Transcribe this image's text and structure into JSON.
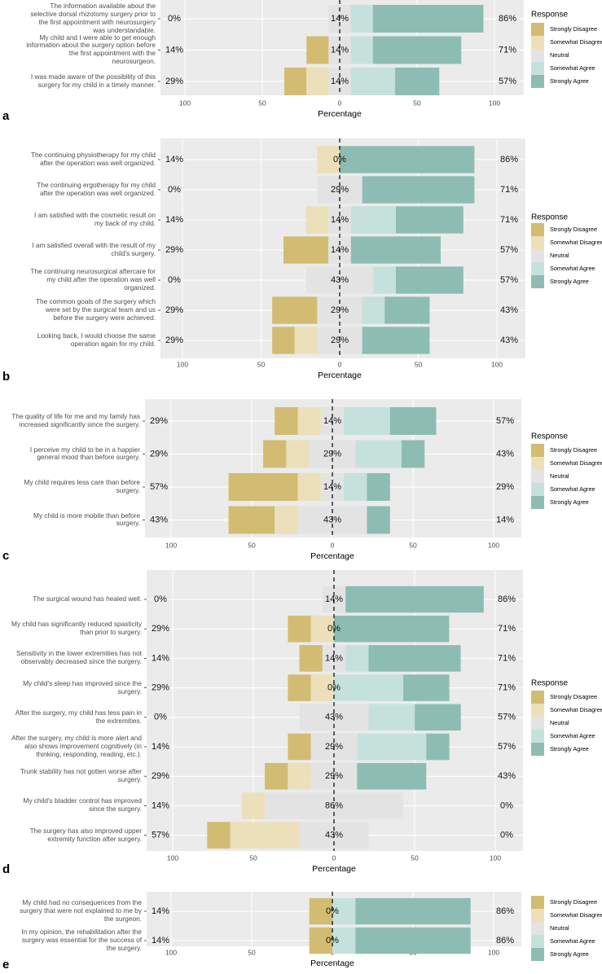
{
  "chart_data": [
    {
      "type": "bar",
      "orientation": "horizontal",
      "stacking": "diverging",
      "panel_label": "a",
      "x_label": "Percentage",
      "legend_title": "Response",
      "xlim": [
        -100,
        100
      ],
      "xticks": [
        {
          "value": -100,
          "label": "100"
        },
        {
          "value": -50,
          "label": "50"
        },
        0,
        50,
        100
      ],
      "grid": true,
      "categories": [
        "The information available about the selective dorsal rhizotomy surgery prior to the first appointment with neurosurgery was understandable.",
        "My child and I were able to get enough information about the surgery option before the first appointment with the neurosurgeon.",
        "I was made aware of the possibility of this surgery for my child in a timely manner."
      ],
      "series": [
        {
          "name": "Strongly Disagree",
          "color": "#d2bc72",
          "values": [
            0,
            14.3,
            14.3
          ]
        },
        {
          "name": "Somewhat Disagree",
          "color": "#ebe0b9",
          "values": [
            0,
            0,
            14.3
          ]
        },
        {
          "name": "Neutral",
          "color": "#e3e3e3",
          "values": [
            14.3,
            14.3,
            14.3
          ],
          "value_labels": [
            "14%",
            "14%",
            "14%"
          ]
        },
        {
          "name": "Somewhat Agree",
          "color": "#c5e1db",
          "values": [
            14.3,
            14.3,
            28.6
          ]
        },
        {
          "name": "Strongly Agree",
          "color": "#8dbdb2",
          "values": [
            71.4,
            57.1,
            28.6
          ]
        }
      ],
      "left_labels": [
        "0%",
        "14%",
        "29%"
      ],
      "right_labels": [
        "86%",
        "71%",
        "57%"
      ]
    },
    {
      "type": "bar",
      "orientation": "horizontal",
      "stacking": "diverging",
      "panel_label": "b",
      "x_label": "Percentage",
      "legend_title": "Response",
      "xlim": [
        -100,
        100
      ],
      "xticks": [
        {
          "value": -100,
          "label": "100"
        },
        {
          "value": -50,
          "label": "50"
        },
        0,
        50,
        100
      ],
      "grid": true,
      "categories": [
        "The continuing physiotherapy for my child after the operation was well organized.",
        "The continuing ergotherapy for my child after the operation was well organized.",
        "I am satisfied with the cosmetic result on my back of my child.",
        "I am satisfied overall with the result of my child's surgery.",
        "The continuing neurosurgical aftercare for my child after the operation was well organized.",
        "The common goals of the surgery which were set by the surgical team and us before the surgery were achieved.",
        "Looking back, I would choose the same operation again for my child."
      ],
      "series": [
        {
          "name": "Strongly Disagree",
          "color": "#d2bc72",
          "values": [
            0,
            0,
            0,
            28.6,
            0,
            28.6,
            14.3
          ]
        },
        {
          "name": "Somewhat Disagree",
          "color": "#ebe0b9",
          "values": [
            14.3,
            0,
            14.3,
            0,
            0,
            0,
            14.3
          ]
        },
        {
          "name": "Neutral",
          "color": "#e3e3e3",
          "values": [
            0,
            28.6,
            14.3,
            14.3,
            42.9,
            28.6,
            28.6
          ],
          "value_labels": [
            "0%",
            "29%",
            "14%",
            "14%",
            "43%",
            "29%",
            "29%"
          ]
        },
        {
          "name": "Somewhat Agree",
          "color": "#c5e1db",
          "values": [
            0,
            0,
            28.6,
            0,
            14.3,
            14.3,
            0
          ]
        },
        {
          "name": "Strongly Agree",
          "color": "#8dbdb2",
          "values": [
            85.7,
            71.4,
            42.9,
            57.1,
            42.9,
            28.6,
            42.9
          ]
        }
      ],
      "left_labels": [
        "14%",
        "0%",
        "14%",
        "29%",
        "0%",
        "29%",
        "29%"
      ],
      "right_labels": [
        "86%",
        "71%",
        "71%",
        "57%",
        "57%",
        "43%",
        "43%"
      ]
    },
    {
      "type": "bar",
      "orientation": "horizontal",
      "stacking": "diverging",
      "panel_label": "c",
      "x_label": "Percentage",
      "legend_title": "Response",
      "xlim": [
        -100,
        100
      ],
      "xticks": [
        {
          "value": -100,
          "label": "100"
        },
        {
          "value": -50,
          "label": "50"
        },
        0,
        50,
        100
      ],
      "grid": true,
      "categories": [
        "The quality of life for me and my family has increased significantly since the surgery.",
        "I perceive my child to be in a happier general mood than before surgery.",
        "My child requires less care than before surgery.",
        "My child is more mobile than before surgery."
      ],
      "series": [
        {
          "name": "Strongly Disagree",
          "color": "#d2bc72",
          "values": [
            14.3,
            14.3,
            42.9,
            28.6
          ]
        },
        {
          "name": "Somewhat Disagree",
          "color": "#ebe0b9",
          "values": [
            14.3,
            14.3,
            14.3,
            14.3
          ]
        },
        {
          "name": "Neutral",
          "color": "#e3e3e3",
          "values": [
            14.3,
            28.6,
            14.3,
            42.9
          ],
          "value_labels": [
            "14%",
            "29%",
            "14%",
            "43%"
          ]
        },
        {
          "name": "Somewhat Agree",
          "color": "#c5e1db",
          "values": [
            28.6,
            28.6,
            14.3,
            0
          ]
        },
        {
          "name": "Strongly Agree",
          "color": "#8dbdb2",
          "values": [
            28.6,
            14.3,
            14.3,
            14.3
          ]
        }
      ],
      "left_labels": [
        "29%",
        "29%",
        "57%",
        "43%"
      ],
      "right_labels": [
        "57%",
        "43%",
        "29%",
        "14%"
      ]
    },
    {
      "type": "bar",
      "orientation": "horizontal",
      "stacking": "diverging",
      "panel_label": "d",
      "x_label": "Percentage",
      "legend_title": "Response",
      "xlim": [
        -100,
        100
      ],
      "xticks": [
        {
          "value": -100,
          "label": "100"
        },
        {
          "value": -50,
          "label": "50"
        },
        0,
        50,
        100
      ],
      "grid": true,
      "categories": [
        "The surgical wound has healed well.",
        "My child has significantly reduced spasticity than prior to surgery.",
        "Sensitivity in the lower extremities has not observably decreased since the surgery.",
        "My child's sleep has improved since the surgery.",
        "After the surgery, my child has less pain in the extremities.",
        "After the surgery, my child is more alert and also shows improvement cognitively (in thinking, responding, reading, etc.).",
        "Trunk stability has not gotten worse after surgery.",
        "My child's bladder control has improved since the surgery.",
        "The surgery has also improved upper extremity function after surgery."
      ],
      "series": [
        {
          "name": "Strongly Disagree",
          "color": "#d2bc72",
          "values": [
            0,
            14.3,
            14.3,
            14.3,
            0,
            14.3,
            14.3,
            0,
            14.3
          ]
        },
        {
          "name": "Somewhat Disagree",
          "color": "#ebe0b9",
          "values": [
            0,
            14.3,
            0,
            14.3,
            0,
            0,
            14.3,
            14.3,
            42.9
          ]
        },
        {
          "name": "Neutral",
          "color": "#e3e3e3",
          "values": [
            14.3,
            0,
            14.3,
            0,
            42.9,
            28.6,
            28.6,
            85.7,
            42.9
          ],
          "value_labels": [
            "14%",
            "0%",
            "14%",
            "0%",
            "43%",
            "29%",
            "29%",
            "86%",
            "43%"
          ]
        },
        {
          "name": "Somewhat Agree",
          "color": "#c5e1db",
          "values": [
            0,
            0,
            14.3,
            42.9,
            28.6,
            42.9,
            0,
            0,
            0
          ]
        },
        {
          "name": "Strongly Agree",
          "color": "#8dbdb2",
          "values": [
            85.7,
            71.4,
            57.1,
            28.6,
            28.6,
            14.3,
            42.9,
            0,
            0
          ]
        }
      ],
      "left_labels": [
        "0%",
        "29%",
        "14%",
        "29%",
        "0%",
        "14%",
        "29%",
        "14%",
        "57%"
      ],
      "right_labels": [
        "86%",
        "71%",
        "71%",
        "71%",
        "57%",
        "57%",
        "43%",
        "0%",
        "0%"
      ]
    },
    {
      "type": "bar",
      "orientation": "horizontal",
      "stacking": "diverging",
      "panel_label": "e",
      "x_label": "Percentage",
      "xlim": [
        -100,
        100
      ],
      "xticks": [
        {
          "value": -100,
          "label": "100"
        },
        {
          "value": -50,
          "label": "50"
        },
        0,
        50,
        100
      ],
      "grid": true,
      "categories": [
        "My child had no consequences from the surgery that were not explained to me by the surgeon.",
        "In my opinion, the rehabilitation after the surgery was essential for the success of the surgery."
      ],
      "series": [
        {
          "name": "Strongly Disagree",
          "color": "#d2bc72",
          "values": [
            14.3,
            14.3
          ]
        },
        {
          "name": "Somewhat Disagree",
          "color": "#ebe0b9",
          "values": [
            0,
            0
          ]
        },
        {
          "name": "Neutral",
          "color": "#e3e3e3",
          "values": [
            0,
            0
          ],
          "value_labels": [
            "0%",
            "0%"
          ]
        },
        {
          "name": "Somewhat Agree",
          "color": "#c5e1db",
          "values": [
            14.3,
            14.3
          ]
        },
        {
          "name": "Strongly Agree",
          "color": "#8dbdb2",
          "values": [
            71.4,
            71.4
          ]
        }
      ],
      "left_labels": [
        "14%",
        "14%"
      ],
      "right_labels": [
        "86%",
        "86%"
      ]
    }
  ]
}
